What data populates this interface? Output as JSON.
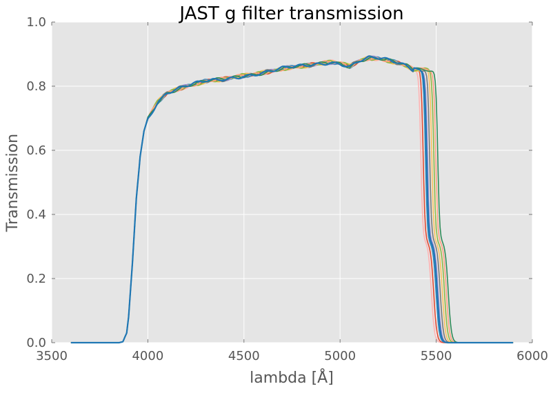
{
  "chart_data": {
    "type": "line",
    "title": "JAST g filter transmission",
    "xlabel": "lambda [Å]",
    "ylabel": "Transmission",
    "xlim": [
      3500,
      6000
    ],
    "ylim": [
      0.0,
      1.0
    ],
    "xticks": [
      "3500",
      "4000",
      "4500",
      "5000",
      "5500",
      "6000"
    ],
    "yticks": [
      "0.0",
      "0.2",
      "0.4",
      "0.6",
      "0.8",
      "1.0"
    ],
    "grid": true,
    "legend": "none",
    "shape": {
      "x": [
        3600,
        3850,
        3870,
        3890,
        3900,
        3920,
        3940,
        3960,
        3980,
        4000,
        4020,
        4050,
        4100,
        4200,
        4300,
        4400,
        4500,
        4600,
        4700,
        4800,
        4900,
        4950,
        5000,
        5050,
        5100,
        5150,
        5200,
        5250,
        5300,
        5350,
        5400
      ],
      "y": [
        0.0,
        0.0,
        0.003,
        0.03,
        0.08,
        0.25,
        0.45,
        0.58,
        0.66,
        0.7,
        0.72,
        0.75,
        0.78,
        0.8,
        0.815,
        0.822,
        0.833,
        0.842,
        0.855,
        0.862,
        0.87,
        0.875,
        0.872,
        0.862,
        0.88,
        0.888,
        0.886,
        0.88,
        0.872,
        0.862,
        0.845
      ]
    },
    "series": [
      {
        "name": "",
        "color": "#ffb3b3",
        "cutoff_wavelength": 5440
      },
      {
        "name": "",
        "color": "#e24a33",
        "cutoff_wavelength": 5452
      },
      {
        "name": "",
        "color": "#348abd",
        "cutoff_wavelength": 5464
      },
      {
        "name": "",
        "color": "#988ed5",
        "cutoff_wavelength": 5475
      },
      {
        "name": "",
        "color": "#777777",
        "cutoff_wavelength": 5486
      },
      {
        "name": "",
        "color": "#fbc15e",
        "cutoff_wavelength": 5497
      },
      {
        "name": "",
        "color": "#8eba42",
        "cutoff_wavelength": 5508
      },
      {
        "name": "",
        "color": "#ff9f80",
        "cutoff_wavelength": 5518
      },
      {
        "name": "",
        "color": "#2e8b57",
        "cutoff_wavelength": 5528
      },
      {
        "name": "",
        "color": "#1f77b4",
        "cutoff_wavelength": 5470
      }
    ]
  }
}
